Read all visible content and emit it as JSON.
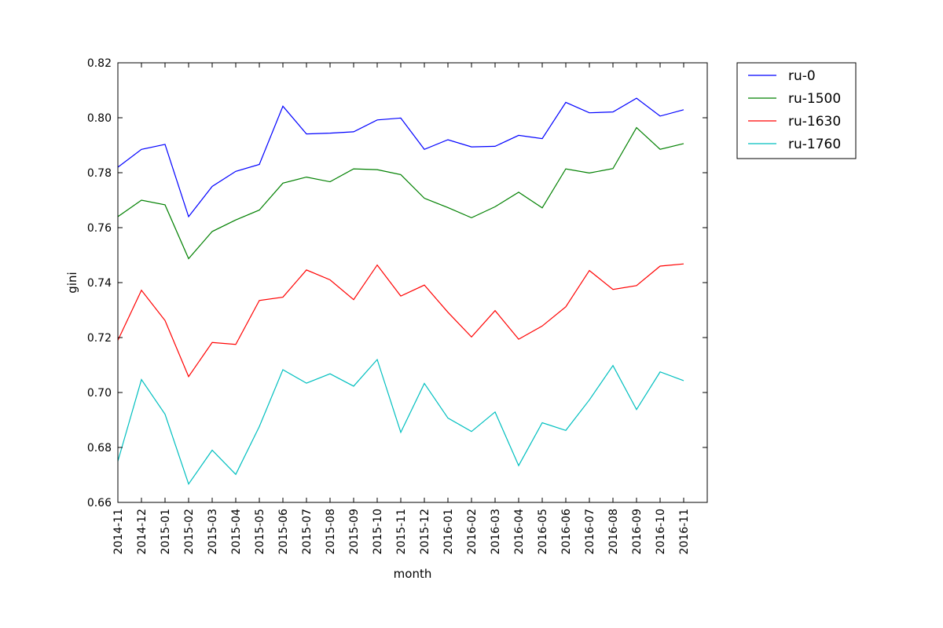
{
  "chart_data": {
    "type": "line",
    "xlabel": "month",
    "ylabel": "gini",
    "ylim": [
      0.66,
      0.82
    ],
    "y_ticks": [
      "0.66",
      "0.68",
      "0.70",
      "0.72",
      "0.74",
      "0.76",
      "0.78",
      "0.80",
      "0.82"
    ],
    "categories": [
      "2014-11",
      "2014-12",
      "2015-01",
      "2015-02",
      "2015-03",
      "2015-04",
      "2015-05",
      "2015-06",
      "2015-07",
      "2015-08",
      "2015-09",
      "2015-10",
      "2015-11",
      "2015-12",
      "2016-01",
      "2016-02",
      "2016-03",
      "2016-04",
      "2016-05",
      "2016-06",
      "2016-07",
      "2016-08",
      "2016-09",
      "2016-10",
      "2016-11"
    ],
    "grid": false,
    "legend_position": "outside-top-right",
    "series": [
      {
        "name": "ru-0",
        "color": "#0000ff",
        "values": [
          0.782,
          0.7885,
          0.7903,
          0.764,
          0.775,
          0.7805,
          0.783,
          0.8042,
          0.7941,
          0.7944,
          0.7949,
          0.7992,
          0.7999,
          0.7885,
          0.792,
          0.7894,
          0.7896,
          0.7936,
          0.7924,
          0.8056,
          0.8018,
          0.8021,
          0.8071,
          0.8006,
          0.8029
        ]
      },
      {
        "name": "ru-1500",
        "color": "#008000",
        "values": [
          0.764,
          0.77,
          0.7683,
          0.7487,
          0.7586,
          0.7628,
          0.7664,
          0.7762,
          0.7784,
          0.7767,
          0.7814,
          0.7811,
          0.7793,
          0.7707,
          0.7673,
          0.7636,
          0.7676,
          0.7729,
          0.7672,
          0.7814,
          0.7799,
          0.7815,
          0.7964,
          0.7885,
          0.7906
        ]
      },
      {
        "name": "ru-1630",
        "color": "#ff0000",
        "values": [
          0.719,
          0.7372,
          0.7262,
          0.7058,
          0.7182,
          0.7175,
          0.7335,
          0.7347,
          0.7446,
          0.741,
          0.7338,
          0.7464,
          0.7351,
          0.7391,
          0.7292,
          0.7202,
          0.7298,
          0.7194,
          0.7242,
          0.7312,
          0.7444,
          0.7375,
          0.7389,
          0.746,
          0.7468
        ]
      },
      {
        "name": "ru-1760",
        "color": "#00bfbf",
        "values": [
          0.675,
          0.7047,
          0.6921,
          0.6667,
          0.679,
          0.6702,
          0.6876,
          0.7083,
          0.7034,
          0.7068,
          0.7023,
          0.712,
          0.6855,
          0.7033,
          0.6907,
          0.6858,
          0.6929,
          0.6734,
          0.689,
          0.6862,
          0.6973,
          0.7098,
          0.6938,
          0.7075,
          0.7043
        ]
      }
    ]
  }
}
